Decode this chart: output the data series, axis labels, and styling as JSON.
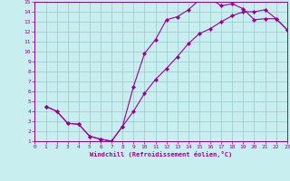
{
  "xlabel": "Windchill (Refroidissement éolien,°C)",
  "bg_color": "#c8eef0",
  "grid_color": "#9fcfcf",
  "line_color": "#990099",
  "xlim": [
    0,
    23
  ],
  "ylim": [
    1,
    15
  ],
  "xticks": [
    0,
    1,
    2,
    3,
    4,
    5,
    6,
    7,
    8,
    9,
    10,
    11,
    12,
    13,
    14,
    15,
    16,
    17,
    18,
    19,
    20,
    21,
    22,
    23
  ],
  "yticks": [
    1,
    2,
    3,
    4,
    5,
    6,
    7,
    8,
    9,
    10,
    11,
    12,
    13,
    14,
    15
  ],
  "line1_x": [
    1,
    2,
    3,
    4,
    5,
    6,
    7,
    8,
    9,
    10,
    11,
    12,
    13,
    14,
    15,
    16,
    17,
    18,
    19,
    20,
    21,
    22,
    23
  ],
  "line1_y": [
    4.5,
    4.0,
    2.8,
    2.7,
    1.5,
    1.2,
    1.0,
    2.5,
    6.5,
    9.8,
    11.2,
    13.2,
    13.5,
    14.2,
    15.2,
    15.3,
    14.6,
    14.8,
    14.3,
    13.2,
    13.3,
    13.3,
    12.2
  ],
  "line2_x": [
    1,
    2,
    3,
    4,
    5,
    6,
    7,
    8,
    9,
    10,
    11,
    12,
    13,
    14,
    15,
    16,
    17,
    18,
    19,
    20,
    21,
    22,
    23
  ],
  "line2_y": [
    4.5,
    4.0,
    2.8,
    2.7,
    1.5,
    1.2,
    1.0,
    2.5,
    4.0,
    5.8,
    7.2,
    8.3,
    9.5,
    10.8,
    11.8,
    12.3,
    13.0,
    13.6,
    14.0,
    14.0,
    14.2,
    13.3,
    12.2
  ]
}
